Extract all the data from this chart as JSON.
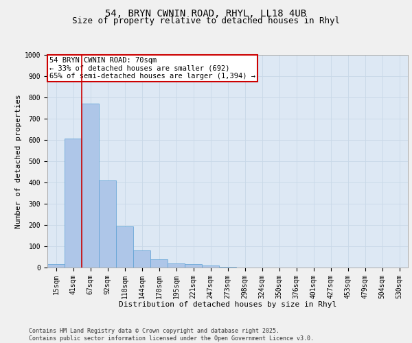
{
  "title_line1": "54, BRYN CWNIN ROAD, RHYL, LL18 4UB",
  "title_line2": "Size of property relative to detached houses in Rhyl",
  "xlabel": "Distribution of detached houses by size in Rhyl",
  "ylabel": "Number of detached properties",
  "categories": [
    "15sqm",
    "41sqm",
    "67sqm",
    "92sqm",
    "118sqm",
    "144sqm",
    "170sqm",
    "195sqm",
    "221sqm",
    "247sqm",
    "273sqm",
    "298sqm",
    "324sqm",
    "350sqm",
    "376sqm",
    "401sqm",
    "427sqm",
    "453sqm",
    "479sqm",
    "504sqm",
    "530sqm"
  ],
  "values": [
    15,
    605,
    770,
    410,
    193,
    80,
    38,
    18,
    15,
    10,
    3,
    0,
    0,
    0,
    0,
    0,
    0,
    0,
    0,
    0,
    0
  ],
  "bar_color": "#aec6e8",
  "bar_edge_color": "#5a9fd4",
  "annotation_text": "54 BRYN CWNIN ROAD: 70sqm\n← 33% of detached houses are smaller (692)\n65% of semi-detached houses are larger (1,394) →",
  "annotation_box_color": "#ffffff",
  "annotation_box_edge_color": "#cc0000",
  "vline_color": "#cc0000",
  "grid_color": "#c8d8e8",
  "background_color": "#dde8f4",
  "fig_background_color": "#f0f0f0",
  "ylim": [
    0,
    1000
  ],
  "yticks": [
    0,
    100,
    200,
    300,
    400,
    500,
    600,
    700,
    800,
    900,
    1000
  ],
  "footer_text": "Contains HM Land Registry data © Crown copyright and database right 2025.\nContains public sector information licensed under the Open Government Licence v3.0.",
  "title_fontsize": 10,
  "subtitle_fontsize": 9,
  "axis_label_fontsize": 8,
  "tick_fontsize": 7,
  "annotation_fontsize": 7.5,
  "footer_fontsize": 6
}
